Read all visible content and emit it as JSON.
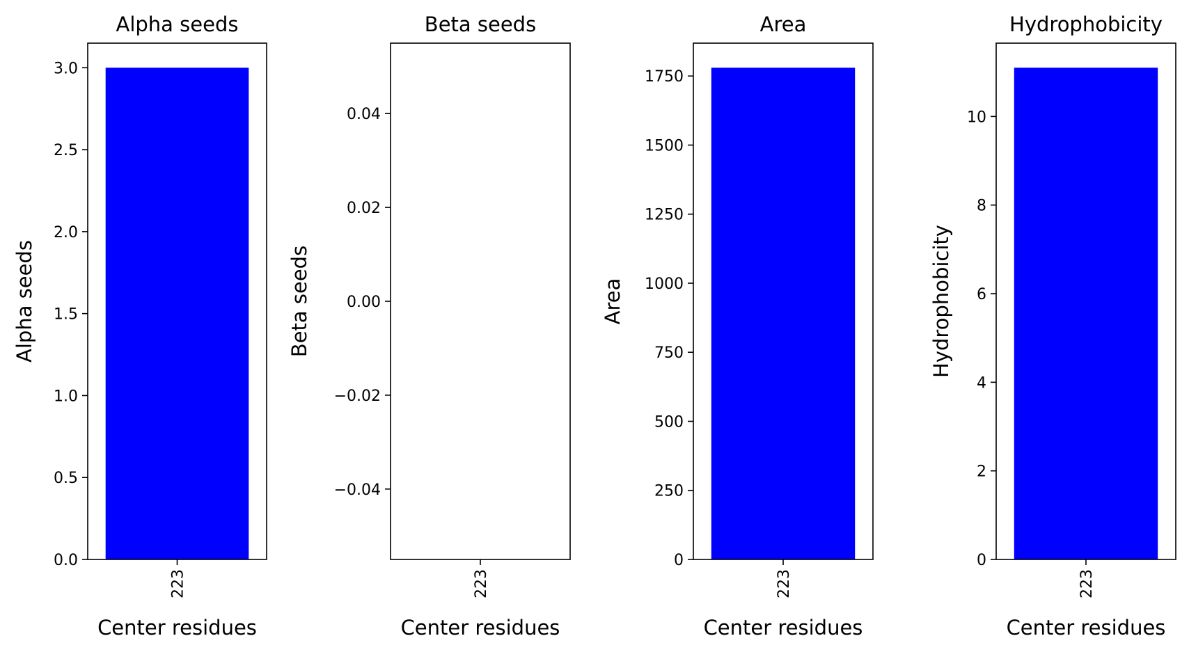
{
  "chart_data": [
    {
      "type": "bar",
      "title": "Alpha seeds",
      "xlabel": "Center residues",
      "ylabel": "Alpha seeds",
      "categories": [
        "223"
      ],
      "values": [
        3
      ],
      "ylim": [
        0,
        3.15
      ],
      "yticks": [
        0.0,
        0.5,
        1.0,
        1.5,
        2.0,
        2.5,
        3.0
      ],
      "ytick_labels": [
        "0.0",
        "0.5",
        "1.0",
        "1.5",
        "2.0",
        "2.5",
        "3.0"
      ],
      "bar_color": "#0000ff"
    },
    {
      "type": "bar",
      "title": "Beta seeds",
      "xlabel": "Center residues",
      "ylabel": "Beta seeds",
      "categories": [
        "223"
      ],
      "values": [
        0
      ],
      "ylim": [
        -0.055,
        0.055
      ],
      "yticks": [
        -0.04,
        -0.02,
        0.0,
        0.02,
        0.04
      ],
      "ytick_labels": [
        "−0.04",
        "−0.02",
        "0.00",
        "0.02",
        "0.04"
      ],
      "bar_color": "#0000ff"
    },
    {
      "type": "bar",
      "title": "Area",
      "xlabel": "Center residues",
      "ylabel": "Area",
      "categories": [
        "223"
      ],
      "values": [
        1780
      ],
      "ylim": [
        0,
        1869
      ],
      "yticks": [
        0,
        250,
        500,
        750,
        1000,
        1250,
        1500,
        1750
      ],
      "ytick_labels": [
        "0",
        "250",
        "500",
        "750",
        "1000",
        "1250",
        "1500",
        "1750"
      ],
      "bar_color": "#0000ff"
    },
    {
      "type": "bar",
      "title": "Hydrophobicity",
      "xlabel": "Center residues",
      "ylabel": "Hydrophobicity",
      "categories": [
        "223"
      ],
      "values": [
        11.1
      ],
      "ylim": [
        0,
        11.655
      ],
      "yticks": [
        0,
        2,
        4,
        6,
        8,
        10
      ],
      "ytick_labels": [
        "0",
        "2",
        "4",
        "6",
        "8",
        "10"
      ],
      "bar_color": "#0000ff"
    }
  ]
}
